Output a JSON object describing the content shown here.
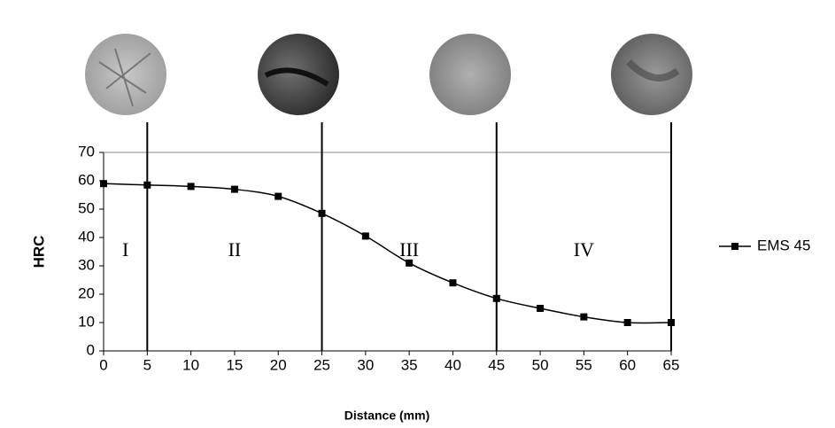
{
  "chart_data": {
    "type": "line",
    "x_label": "Distance (mm)",
    "y_label": "HRC",
    "x": [
      0,
      5,
      10,
      15,
      20,
      25,
      30,
      35,
      40,
      45,
      50,
      55,
      60,
      65
    ],
    "series": [
      {
        "name": "EMS 45",
        "color": "#000000",
        "values": [
          59,
          58.5,
          58,
          57,
          54.5,
          48.5,
          40.5,
          31,
          24,
          18.5,
          15,
          12,
          10,
          10
        ]
      }
    ],
    "xlim": [
      0,
      65
    ],
    "xticks": [
      0,
      5,
      10,
      15,
      20,
      25,
      30,
      35,
      40,
      45,
      50,
      55,
      60,
      65
    ],
    "ylim": [
      0,
      70
    ],
    "yticks": [
      0,
      10,
      20,
      30,
      40,
      50,
      60,
      70
    ],
    "zone_boundaries": [
      5,
      25,
      45,
      65
    ],
    "zone_labels": [
      "I",
      "II",
      "III",
      "IV"
    ],
    "legend": "right"
  }
}
